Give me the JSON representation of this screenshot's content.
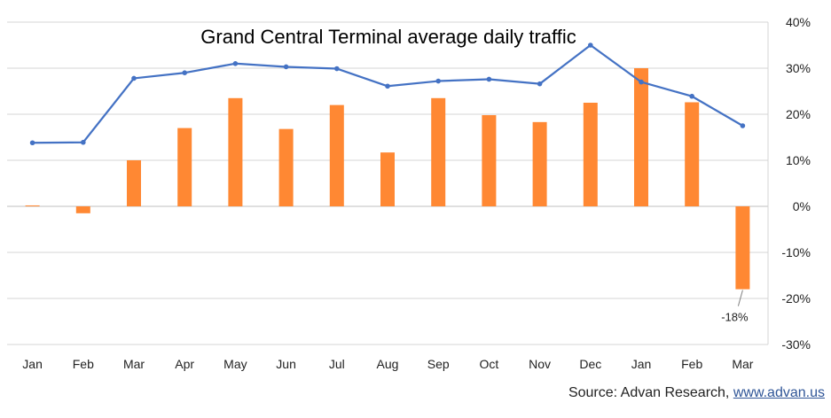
{
  "chart_data": {
    "type": "bar",
    "title": "Grand Central Terminal average daily traffic",
    "xlabel": "",
    "ylabel": "",
    "categories": [
      "Jan",
      "Feb",
      "Mar",
      "Apr",
      "May",
      "Jun",
      "Jul",
      "Aug",
      "Sep",
      "Oct",
      "Nov",
      "Dec",
      "Jan",
      "Feb",
      "Mar"
    ],
    "ylim": [
      -30,
      40
    ],
    "y_ticks": [
      40,
      30,
      20,
      10,
      0,
      -10,
      -20,
      -30
    ],
    "y_tick_labels": [
      "40%",
      "30%",
      "20%",
      "10%",
      "0%",
      "-10%",
      "-20%",
      "-30%"
    ],
    "grid": true,
    "legend": "none",
    "series": [
      {
        "name": "bars",
        "type": "bar",
        "color": "#ff8833",
        "values": [
          0.2,
          -1.5,
          10,
          17,
          23.5,
          16.8,
          22,
          11.7,
          23.5,
          19.8,
          18.3,
          22.5,
          30,
          22.6,
          -18
        ]
      },
      {
        "name": "line",
        "type": "line",
        "color": "#4472c4",
        "values": [
          13.8,
          13.9,
          27.8,
          29,
          31,
          30.3,
          29.9,
          26.1,
          27.2,
          27.6,
          26.6,
          35,
          27,
          23.9,
          17.5
        ]
      }
    ],
    "annotations": [
      {
        "category_index": 14,
        "text": "-18%"
      }
    ]
  },
  "source": {
    "prefix": "Source: Advan Research, ",
    "link_text": "www.advan.us"
  }
}
